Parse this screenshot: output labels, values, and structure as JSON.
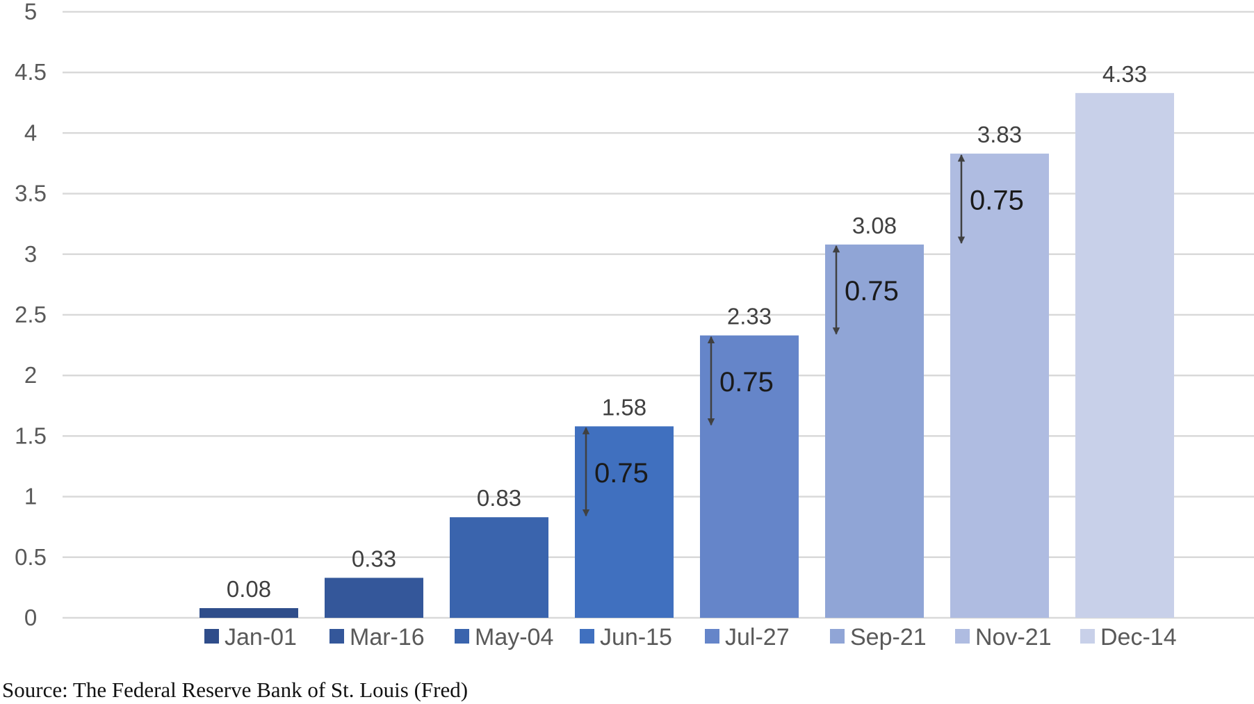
{
  "chart_data": {
    "type": "bar",
    "categories": [
      "Jan-01",
      "Mar-16",
      "May-04",
      "Jun-15",
      "Jul-27",
      "Sep-21",
      "Nov-21",
      "Dec-14"
    ],
    "values": [
      0.08,
      0.33,
      0.83,
      1.58,
      2.33,
      3.08,
      3.83,
      4.33
    ],
    "value_labels": [
      "0.08",
      "0.33",
      "0.83",
      "1.58",
      "2.33",
      "3.08",
      "3.83",
      "4.33"
    ],
    "colors": [
      "#2f4d8a",
      "#34579a",
      "#3a64ad",
      "#4070bf",
      "#6585c9",
      "#90a5d6",
      "#afbce1",
      "#c8d0e9"
    ],
    "ylim": [
      0,
      5
    ],
    "yticks": [
      "0",
      "0.5",
      "1",
      "1.5",
      "2",
      "2.5",
      "3",
      "3.5",
      "4",
      "4.5",
      "5"
    ],
    "grid": true,
    "legend_position": "bottom",
    "annotations": [
      {
        "category": "Jun-15",
        "from": 0.83,
        "to": 1.58,
        "label": "0.75"
      },
      {
        "category": "Jul-27",
        "from": 1.58,
        "to": 2.33,
        "label": "0.75"
      },
      {
        "category": "Sep-21",
        "from": 2.33,
        "to": 3.08,
        "label": "0.75"
      },
      {
        "category": "Nov-21",
        "from": 3.08,
        "to": 3.83,
        "label": "0.75"
      }
    ],
    "arrow_color": "#404040",
    "title": "",
    "xlabel": "",
    "ylabel": ""
  },
  "source": "Source: The Federal Reserve Bank of St. Louis (Fred)"
}
